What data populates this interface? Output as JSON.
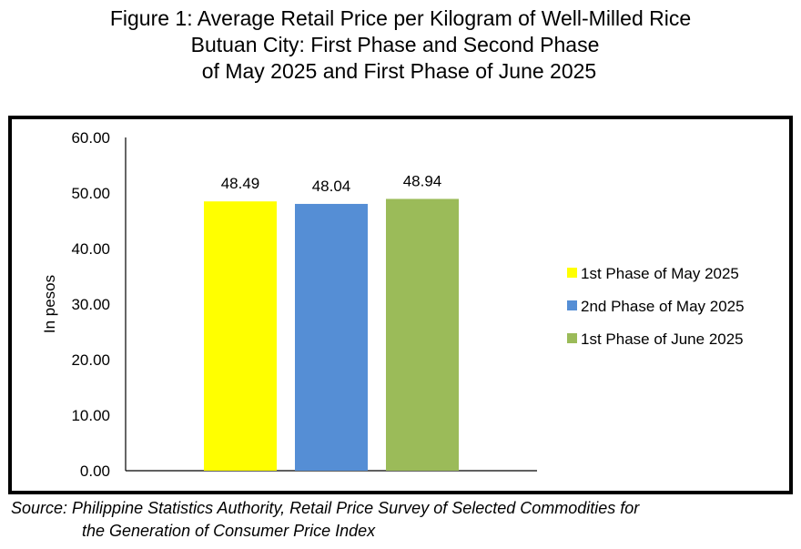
{
  "title": {
    "line1": "Figure 1: Average Retail Price per Kilogram of Well-Milled Rice",
    "line2": "Butuan City: First Phase and Second Phase",
    "line3": "of May 2025 and First Phase of June 2025"
  },
  "source": {
    "line1": "Source: Philippine Statistics Authority, Retail Price Survey of Selected Commodities for",
    "line2": "the Generation of Consumer Price Index"
  },
  "chart_data": {
    "type": "bar",
    "ylabel": "In pesos",
    "ylim": [
      0,
      60
    ],
    "yticks": [
      "0.00",
      "10.00",
      "20.00",
      "30.00",
      "40.00",
      "50.00",
      "60.00"
    ],
    "grid": false,
    "legend_position": "right",
    "series": [
      {
        "name": "1st Phase of May 2025",
        "value": 48.49,
        "label": "48.49",
        "color": "#ffff00"
      },
      {
        "name": "2nd Phase of May 2025",
        "value": 48.04,
        "label": "48.04",
        "color": "#558ed5"
      },
      {
        "name": "1st Phase of June 2025",
        "value": 48.94,
        "label": "48.94",
        "color": "#9bbb59"
      }
    ]
  }
}
